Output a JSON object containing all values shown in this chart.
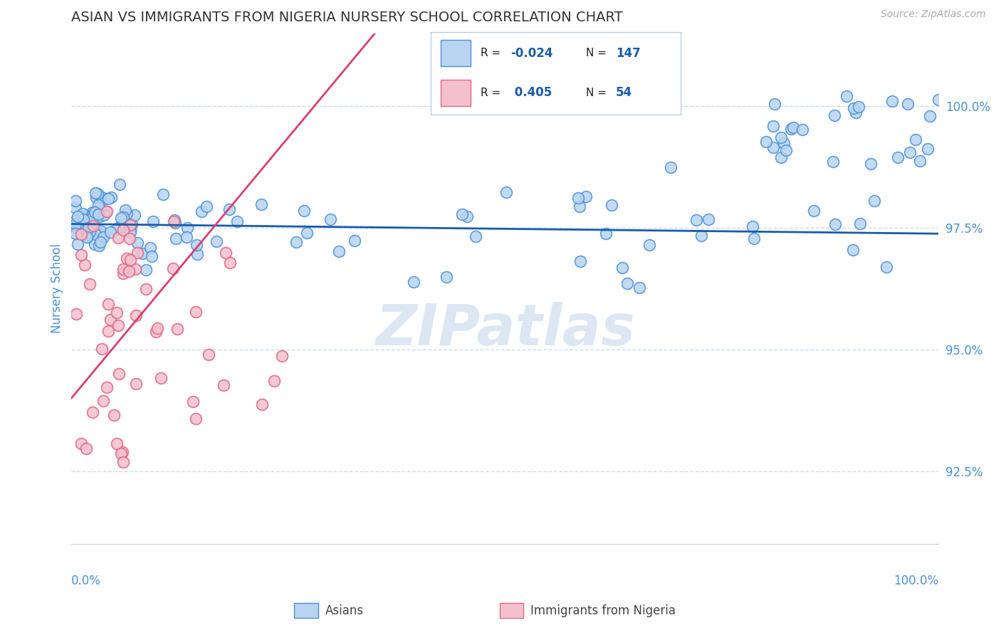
{
  "title": "ASIAN VS IMMIGRANTS FROM NIGERIA NURSERY SCHOOL CORRELATION CHART",
  "source": "Source: ZipAtlas.com",
  "ylabel": "Nursery School",
  "xlim": [
    0.0,
    100.0
  ],
  "ylim": [
    91.0,
    101.5
  ],
  "ytick_vals": [
    92.5,
    95.0,
    97.5,
    100.0
  ],
  "legend": {
    "asian_R": "-0.024",
    "asian_N": "147",
    "nigeria_R": "0.405",
    "nigeria_N": "54"
  },
  "asian_color": "#b8d4f0",
  "asian_edge_color": "#4a90d9",
  "nigeria_color": "#f5c0ce",
  "nigeria_edge_color": "#e06888",
  "trend_asian_color": "#1a5ca8",
  "trend_nigeria_color": "#d94070",
  "watermark": "ZIPatlas",
  "watermark_color": "#c5d8ec",
  "background_color": "#ffffff",
  "axis_label_color": "#4a90d9",
  "tick_label_color": "#4a90d9",
  "grid_color": "#c8ddf0",
  "title_fontsize": 14,
  "source_color": "#aaaaaa"
}
